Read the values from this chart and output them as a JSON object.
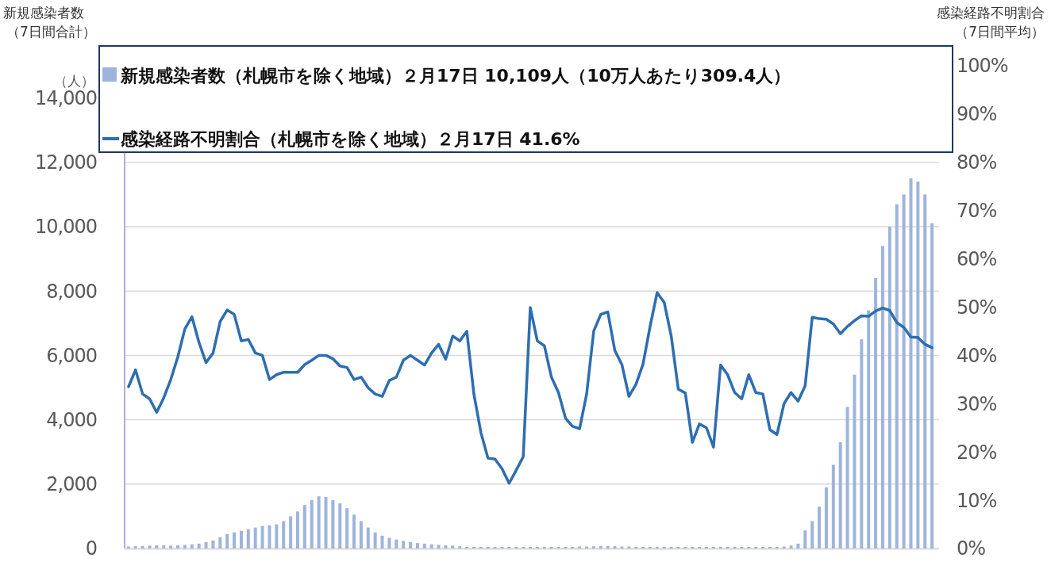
{
  "chart_data": {
    "type": "bar",
    "ylabel": "新規感染者数（7日間合計）",
    "y2label": "感染経路不明割合（7日間平均）",
    "annotations": [
      "（人）"
    ],
    "categories": [
      null,
      null,
      null,
      null,
      null,
      null,
      null,
      null,
      null,
      null,
      null,
      null,
      null,
      null,
      null,
      null,
      null,
      null,
      null,
      null,
      null,
      null,
      null,
      null,
      null,
      null,
      null,
      null,
      null,
      null,
      null,
      null,
      null,
      null,
      null,
      null,
      null,
      null,
      null,
      null,
      null,
      null,
      null,
      null,
      null,
      null,
      null,
      null,
      null,
      null,
      null,
      null,
      null,
      null,
      null,
      null,
      null,
      null,
      null,
      null,
      null,
      null,
      null,
      null,
      null,
      null,
      null,
      null,
      null,
      null,
      null,
      null,
      null,
      null,
      null,
      null,
      null,
      null,
      null,
      null,
      null,
      null,
      null,
      null,
      null,
      null,
      null,
      null,
      null,
      null,
      null,
      null,
      null,
      null,
      null,
      null,
      null,
      null,
      null,
      null,
      null,
      null,
      null,
      null,
      null,
      null,
      null,
      null,
      null,
      null,
      null,
      null,
      null,
      null,
      null
    ],
    "series": [
      {
        "name": "新規感染者数（札幌市を除く地域）２月17日 10,109人（10万人あたり309.4人）",
        "color": "#9fb4dc",
        "values": [
          60,
          70,
          80,
          90,
          100,
          100,
          90,
          100,
          110,
          130,
          150,
          200,
          250,
          350,
          450,
          500,
          550,
          600,
          650,
          700,
          720,
          750,
          850,
          1000,
          1150,
          1350,
          1500,
          1620,
          1600,
          1500,
          1400,
          1250,
          1050,
          850,
          650,
          500,
          400,
          330,
          280,
          230,
          200,
          170,
          150,
          130,
          110,
          100,
          90,
          70,
          50,
          50,
          50,
          50,
          50,
          50,
          50,
          50,
          50,
          50,
          50,
          50,
          50,
          50,
          50,
          50,
          60,
          60,
          70,
          80,
          80,
          70,
          60,
          60,
          50,
          50,
          50,
          50,
          50,
          50,
          50,
          50,
          50,
          50,
          50,
          50,
          50,
          50,
          50,
          50,
          50,
          50,
          50,
          50,
          50,
          60,
          90,
          150,
          560,
          850,
          1300,
          1900,
          2600,
          3300,
          4400,
          5400,
          6500,
          7400,
          8400,
          9400,
          10000,
          10700,
          11000,
          11500,
          11400,
          11000,
          10109
        ]
      },
      {
        "type": "line",
        "axis": "y2",
        "name": "感染経路不明割合（札幌市を除く地域）２月17日 41.6%",
        "color": "#2e6eb0",
        "values": [
          33.5,
          37,
          32,
          31,
          28.2,
          31.2,
          35,
          39.7,
          45.5,
          48,
          42.7,
          38.5,
          40.5,
          47,
          49.4,
          48.5,
          43,
          43.3,
          40.5,
          40,
          35,
          36,
          36.5,
          36.5,
          36.5,
          38.1,
          39,
          40,
          40,
          39.3,
          37.8,
          37.5,
          35,
          35.5,
          33.3,
          32,
          31.5,
          34.8,
          35.5,
          39,
          40,
          39,
          38,
          40.5,
          42.3,
          39.2,
          44,
          43,
          45,
          32,
          24,
          18.7,
          18.5,
          16.5,
          13.5,
          16.2,
          19,
          49.9,
          43,
          42,
          35.5,
          32.3,
          27,
          25.3,
          24.8,
          32,
          45,
          48.5,
          49,
          41,
          38.1,
          31.5,
          34,
          38.2,
          46,
          53,
          51,
          44,
          33,
          32.2,
          22,
          25.8,
          25,
          21,
          38,
          36,
          32.3,
          31,
          36,
          32.3,
          32,
          24.6,
          23.6,
          30,
          32.3,
          30.5,
          33.7,
          47.9,
          47.6,
          47.5,
          46.5,
          44.5,
          46,
          47.2,
          48.2,
          48.1,
          49.2,
          49.8,
          49.3,
          46.8,
          45.8,
          43.8,
          43.7,
          42.3,
          41.6
        ]
      }
    ],
    "ylim": [
      0,
      15000
    ],
    "yticks": [
      {
        "value": 0,
        "label": "0"
      },
      {
        "value": 2000,
        "label": "2,000"
      },
      {
        "value": 4000,
        "label": "4,000"
      },
      {
        "value": 6000,
        "label": "6,000"
      },
      {
        "value": 8000,
        "label": "8,000"
      },
      {
        "value": 10000,
        "label": "10,000"
      },
      {
        "value": 12000,
        "label": "12,000"
      },
      {
        "value": 14000,
        "label": "14,000"
      }
    ],
    "y2lim": [
      0,
      100
    ],
    "y2ticks": [
      {
        "value": 0,
        "label": "0%"
      },
      {
        "value": 10,
        "label": "10%"
      },
      {
        "value": 20,
        "label": "20%"
      },
      {
        "value": 30,
        "label": "30%"
      },
      {
        "value": 40,
        "label": "40%"
      },
      {
        "value": 50,
        "label": "50%"
      },
      {
        "value": 60,
        "label": "60%"
      },
      {
        "value": 70,
        "label": "70%"
      },
      {
        "value": 80,
        "label": "80%"
      },
      {
        "value": 90,
        "label": "90%"
      },
      {
        "value": 100,
        "label": "100%"
      }
    ],
    "grid": "y",
    "legend": "top"
  }
}
